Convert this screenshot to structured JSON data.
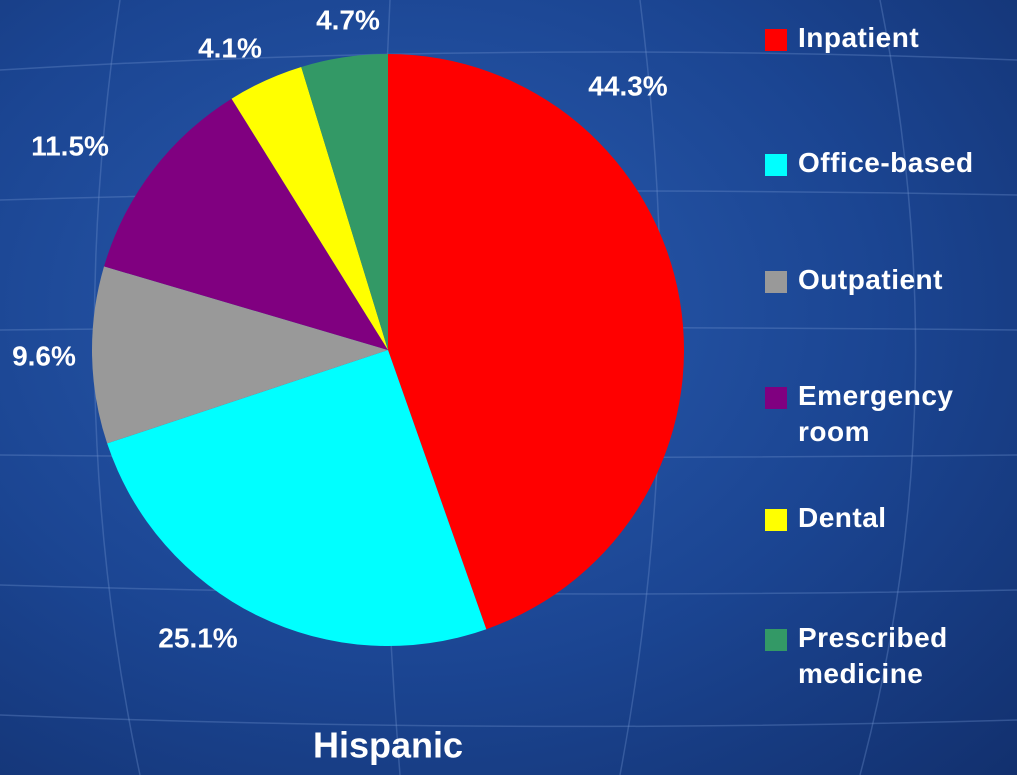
{
  "chart_data": {
    "type": "pie",
    "title": "Hispanic",
    "categories": [
      "Inpatient",
      "Office-based",
      "Outpatient",
      "Emergency room",
      "Dental",
      "Prescribed medicine"
    ],
    "values": [
      44.3,
      25.1,
      9.6,
      11.5,
      4.1,
      4.7
    ],
    "value_labels": [
      "44.3%",
      "25.1%",
      "9.6%",
      "11.5%",
      "4.1%",
      "4.7%"
    ],
    "colors": [
      "#ff0000",
      "#00ffff",
      "#999999",
      "#800080",
      "#ffff00",
      "#339966"
    ],
    "legend": "right"
  }
}
